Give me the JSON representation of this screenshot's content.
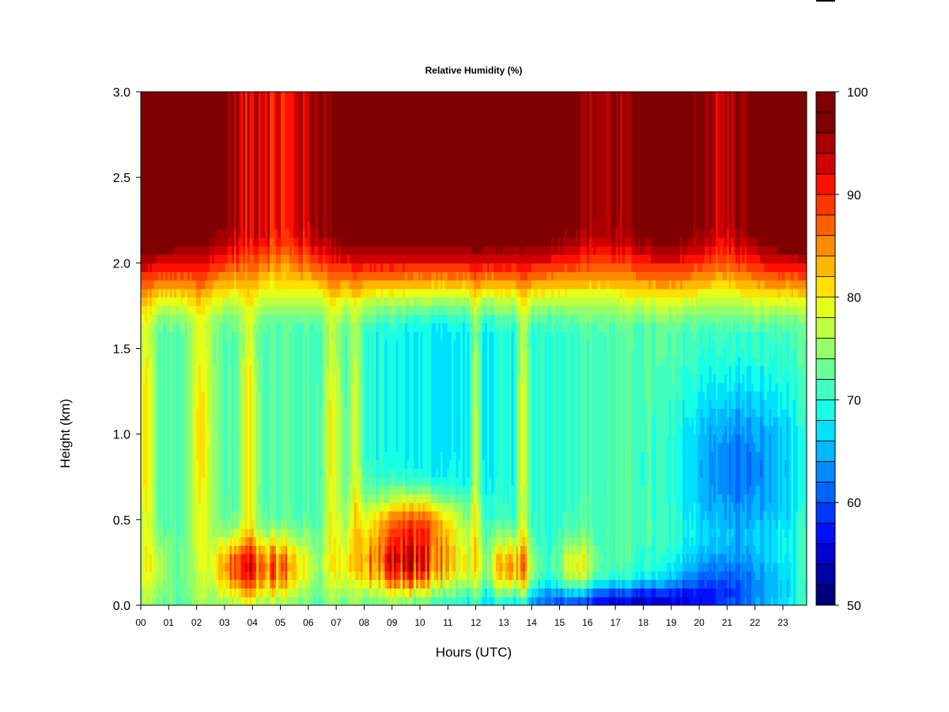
{
  "chart_data": {
    "type": "heatmap",
    "title": "Relative Humidity (%)",
    "xlabel": "Hours (UTC)",
    "ylabel": "Height (km)",
    "xlim": [
      0,
      24
    ],
    "ylim": [
      0.0,
      3.0
    ],
    "x_ticks": [
      "00",
      "01",
      "02",
      "03",
      "04",
      "05",
      "06",
      "07",
      "08",
      "09",
      "10",
      "11",
      "12",
      "13",
      "14",
      "15",
      "16",
      "17",
      "18",
      "19",
      "20",
      "21",
      "22",
      "23"
    ],
    "y_ticks": [
      "0.0",
      "0.5",
      "1.0",
      "1.5",
      "2.0",
      "2.5",
      "3.0"
    ],
    "colorbar": {
      "min": 50,
      "max": 100,
      "tick_labels": [
        "50",
        "60",
        "70",
        "80",
        "90",
        "100"
      ],
      "colors": [
        "#00007f",
        "#0000a8",
        "#0000d1",
        "#0010ff",
        "#0038ff",
        "#0064ff",
        "#008cff",
        "#00b8ff",
        "#00e0ff",
        "#18ffe6",
        "#40ffbe",
        "#6aff94",
        "#94ff6a",
        "#beff40",
        "#e6ff18",
        "#ffe000",
        "#ffb800",
        "#ff8c00",
        "#ff6000",
        "#ff3800",
        "#ff1000",
        "#d10000",
        "#a80000",
        "#7f0000",
        "#7f0000"
      ]
    },
    "grid": false,
    "note": "Approximate relative humidity field: near-saturated above ~2.1 km, moist 0.1–0.4 km layer between 03–13 UTC, dry 0.4–1.3 km layer (minimum ~60%) from 19–23 UTC, very dry shallow surface layer from 14–20 UTC."
  }
}
